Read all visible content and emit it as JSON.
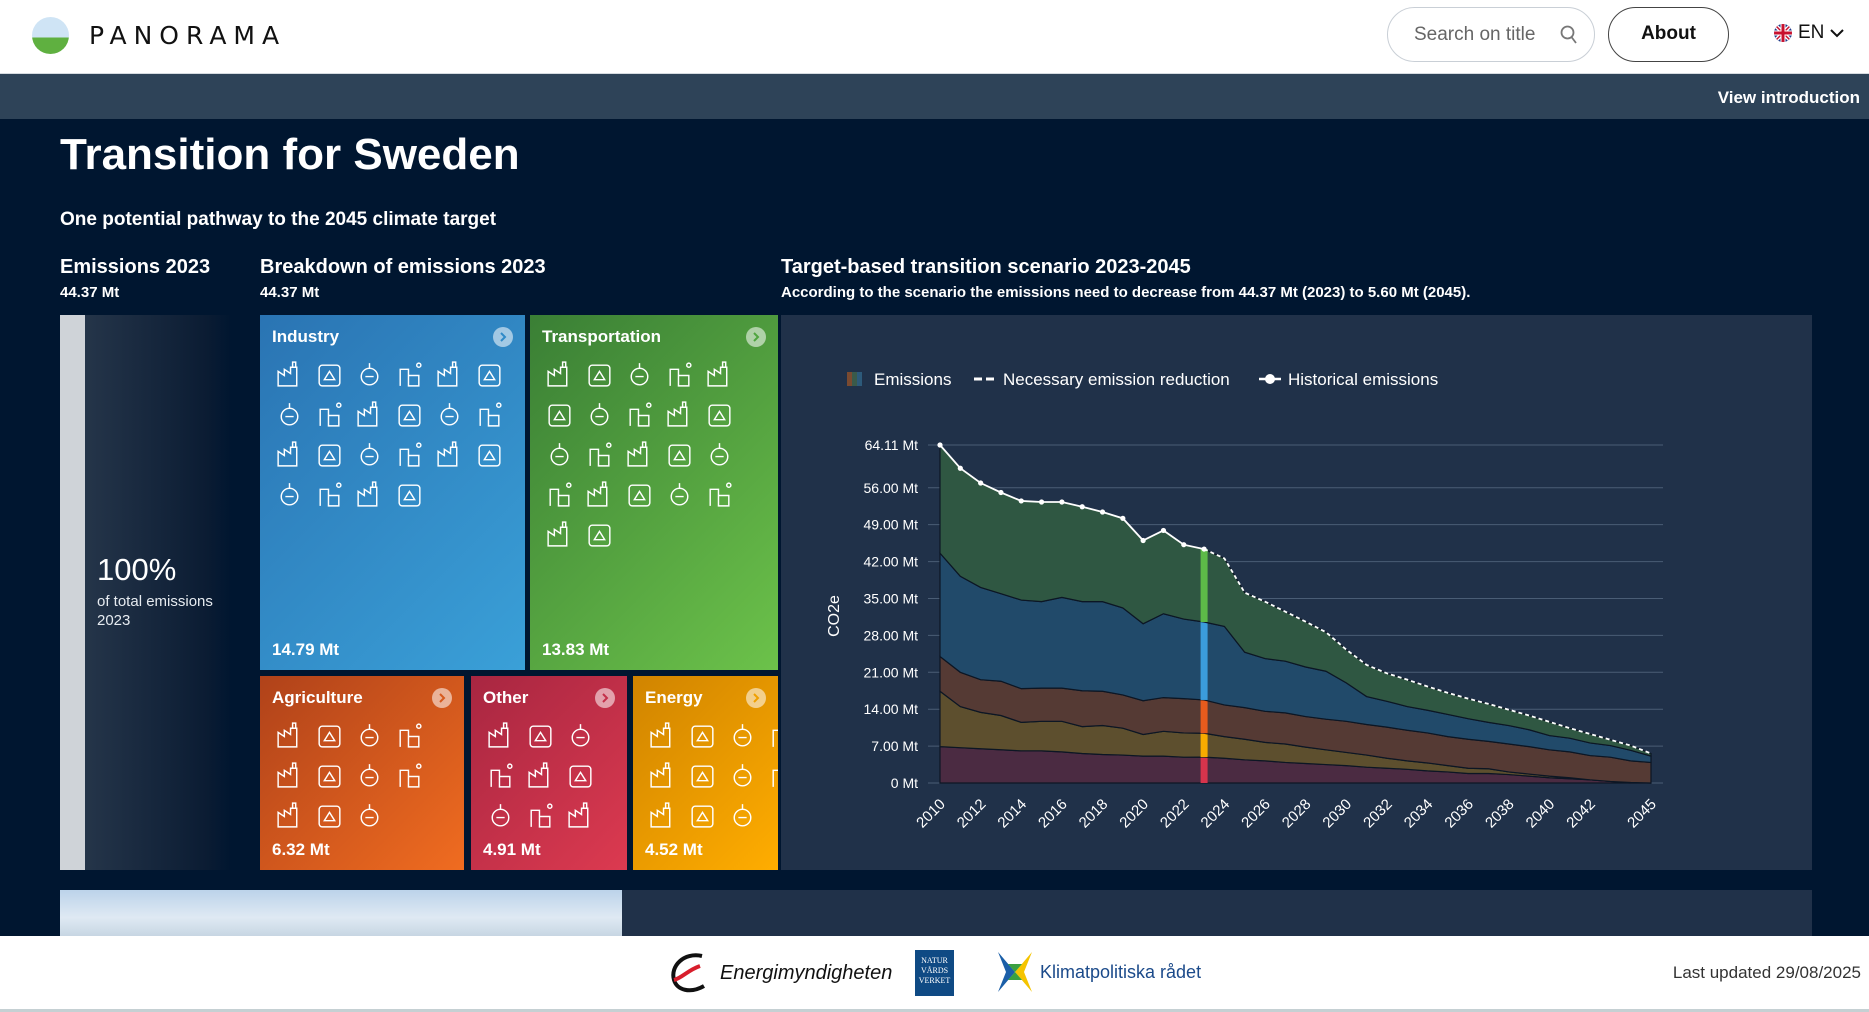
{
  "header": {
    "brand": "PANORAMA",
    "search_placeholder": "Search on title",
    "about": "About",
    "language": "EN"
  },
  "subbar": {
    "view_intro": "View introduction"
  },
  "page": {
    "title": "Transition for Sweden",
    "subtitle": "One potential pathway to the 2045 climate target"
  },
  "emissions": {
    "heading": "Emissions 2023",
    "value": "44.37 Mt",
    "percent": "100%",
    "percent_label": "of total emissions 2023"
  },
  "breakdown": {
    "heading": "Breakdown of emissions 2023",
    "value": "44.37 Mt",
    "tiles": [
      {
        "name": "Industry",
        "value": "14.79 Mt",
        "color": "#2f8ac8",
        "icon_count": 22,
        "cols": 6
      },
      {
        "name": "Transportation",
        "value": "13.83 Mt",
        "color": "#4fa53f",
        "icon_count": 22,
        "cols": 5
      },
      {
        "name": "Agriculture",
        "value": "6.32 Mt",
        "color": "#d65a1e",
        "icon_count": 11,
        "cols": 4
      },
      {
        "name": "Other",
        "value": "4.91 Mt",
        "color": "#c4304a",
        "icon_count": 9,
        "cols": 3
      },
      {
        "name": "Energy",
        "value": "4.52 Mt",
        "color": "#f0a000",
        "icon_count": 11,
        "cols": 4
      }
    ]
  },
  "scenario": {
    "heading": "Target-based transition scenario 2023-2045",
    "description": "According to the scenario the emissions need to decrease from 44.37 Mt (2023) to 5.60 Mt (2045)."
  },
  "chart_data": {
    "type": "area",
    "stacked": true,
    "ylabel": "CO2e",
    "ylim": [
      0,
      64.11
    ],
    "yticks": [
      "0 Mt",
      "7.00 Mt",
      "14.00 Mt",
      "21.00 Mt",
      "28.00 Mt",
      "35.00 Mt",
      "42.00 Mt",
      "49.00 Mt",
      "56.00 Mt",
      "64.11 Mt"
    ],
    "ytick_values": [
      0,
      7,
      14,
      21,
      28,
      35,
      42,
      49,
      56,
      64.11
    ],
    "xtick_labels": [
      "2010",
      "2012",
      "2014",
      "2016",
      "2018",
      "2020",
      "2022",
      "2024",
      "2026",
      "2028",
      "2030",
      "2032",
      "2034",
      "2036",
      "2038",
      "2040",
      "2042",
      "2045"
    ],
    "grid": true,
    "legend_position": "top-left",
    "legend": [
      "Emissions",
      "Necessary emission reduction",
      "Historical emissions"
    ],
    "x": [
      2010,
      2011,
      2012,
      2013,
      2014,
      2015,
      2016,
      2017,
      2018,
      2019,
      2020,
      2021,
      2022,
      2023,
      2024,
      2025,
      2026,
      2027,
      2028,
      2029,
      2030,
      2031,
      2032,
      2033,
      2034,
      2035,
      2036,
      2037,
      2038,
      2039,
      2040,
      2041,
      2042,
      2043,
      2044,
      2045
    ],
    "series": [
      {
        "sector": "Other",
        "color": "#4b2b42",
        "highlight": "#d6344c",
        "values": [
          6.9,
          6.7,
          6.5,
          6.3,
          6.1,
          6.1,
          5.9,
          5.6,
          5.4,
          5.3,
          5.1,
          5.1,
          4.9,
          4.91,
          4.7,
          4.4,
          4.2,
          3.9,
          3.7,
          3.5,
          3.3,
          3.0,
          2.8,
          2.6,
          2.3,
          2.1,
          1.8,
          1.8,
          1.6,
          1.3,
          1.0,
          0.8,
          0.6,
          0.3,
          0.1,
          0
        ]
      },
      {
        "sector": "Energy",
        "color": "#5d4f2e",
        "highlight": "#f7ab00",
        "values": [
          10.5,
          7.8,
          6.9,
          6.5,
          5.4,
          5.6,
          5.8,
          5.1,
          5.5,
          5.1,
          4.1,
          4.7,
          4.6,
          4.52,
          4.1,
          3.9,
          3.5,
          3.5,
          3.1,
          2.8,
          2.5,
          2.3,
          1.9,
          1.6,
          1.5,
          1.2,
          1.0,
          0.9,
          0.5,
          0.4,
          0.3,
          0.2,
          0,
          0,
          0,
          0
        ]
      },
      {
        "sector": "Agriculture",
        "color": "#553a34",
        "highlight": "#e65b1d",
        "values": [
          6.6,
          6.5,
          6.2,
          6.5,
          6.4,
          6.3,
          6.3,
          6.8,
          6.5,
          6.3,
          6.4,
          6.4,
          6.5,
          6.32,
          6.0,
          6.0,
          5.9,
          5.9,
          5.8,
          5.8,
          5.9,
          5.8,
          5.9,
          5.8,
          5.7,
          5.5,
          5.5,
          5.2,
          5.3,
          5.2,
          5.0,
          4.9,
          4.6,
          4.6,
          4.1,
          3.9
        ]
      },
      {
        "sector": "Industry",
        "color": "#214a6a",
        "highlight": "#3b9cdb",
        "values": [
          19.6,
          18.2,
          17.5,
          16.6,
          16.8,
          16.4,
          17.2,
          16.9,
          17.0,
          16.5,
          14.6,
          15.9,
          15.1,
          14.79,
          14.9,
          10.5,
          10.0,
          9.8,
          9.4,
          9.1,
          7.3,
          5.3,
          4.9,
          4.5,
          4.3,
          4.2,
          3.9,
          3.6,
          3.5,
          3.2,
          2.7,
          2.6,
          2.4,
          2.2,
          2.0,
          1.2
        ]
      },
      {
        "sector": "Transportation",
        "color": "#2f5742",
        "highlight": "#5dba48",
        "values": [
          20.5,
          20.5,
          19.8,
          19.2,
          18.8,
          18.9,
          18.1,
          18.0,
          17.0,
          17.0,
          15.8,
          15.8,
          14.1,
          13.83,
          12.9,
          11.3,
          10.8,
          9.4,
          8.6,
          7.4,
          6.3,
          6.0,
          5.3,
          5.1,
          4.5,
          4.1,
          3.8,
          3.5,
          3.0,
          2.7,
          2.6,
          1.9,
          1.7,
          1.1,
          0.9,
          0.5
        ]
      }
    ],
    "historical_emissions": {
      "x": [
        2010,
        2011,
        2012,
        2013,
        2014,
        2015,
        2016,
        2017,
        2018,
        2019,
        2020,
        2021,
        2022,
        2023
      ],
      "values": [
        64.11,
        59.7,
        56.9,
        55.1,
        53.5,
        53.3,
        53.3,
        52.4,
        51.4,
        50.2,
        46.0,
        47.9,
        45.2,
        44.37
      ]
    },
    "necessary_emission_reduction": {
      "x": [
        2023,
        2024,
        2025,
        2026,
        2027,
        2028,
        2029,
        2030,
        2031,
        2032,
        2033,
        2034,
        2035,
        2036,
        2037,
        2038,
        2039,
        2040,
        2041,
        2042,
        2043,
        2044,
        2045
      ],
      "values": [
        44.37,
        42.6,
        36.1,
        34.4,
        32.5,
        30.6,
        28.6,
        25.3,
        22.4,
        20.8,
        19.6,
        18.3,
        17.1,
        16.0,
        15.0,
        13.9,
        12.8,
        11.6,
        10.4,
        9.3,
        8.2,
        7.1,
        5.6
      ]
    },
    "highlight_year": 2023
  },
  "footer": {
    "logos": [
      "Energimyndigheten",
      "NATUR VÅRDS VERKET",
      "Klimatpolitiska rådet"
    ],
    "last_updated": "Last updated 29/08/2025"
  }
}
